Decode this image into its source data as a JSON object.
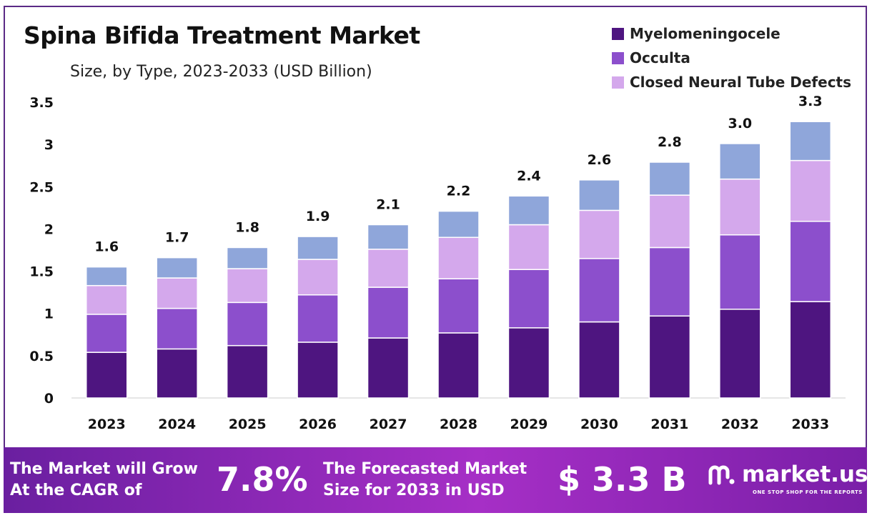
{
  "chart_data": {
    "type": "bar",
    "stacked": true,
    "title": "Spina Bifida Treatment Market",
    "subtitle": "Size, by Type, 2023-2033 (USD Billion)",
    "categories": [
      "2023",
      "2024",
      "2025",
      "2026",
      "2027",
      "2028",
      "2029",
      "2030",
      "2031",
      "2032",
      "2033"
    ],
    "series": [
      {
        "name": "Myelomeningocele",
        "color": "#4e1580",
        "values": [
          0.54,
          0.58,
          0.62,
          0.66,
          0.71,
          0.77,
          0.83,
          0.9,
          0.97,
          1.05,
          1.14
        ]
      },
      {
        "name": "Occulta",
        "color": "#8c4fcc",
        "values": [
          0.45,
          0.48,
          0.51,
          0.56,
          0.6,
          0.64,
          0.69,
          0.75,
          0.81,
          0.88,
          0.95
        ]
      },
      {
        "name": "Closed Neural Tube Defects",
        "color": "#d4a8ec",
        "values": [
          0.34,
          0.36,
          0.4,
          0.42,
          0.45,
          0.49,
          0.53,
          0.57,
          0.62,
          0.66,
          0.72
        ]
      },
      {
        "color": "#8fa6da",
        "values": [
          0.22,
          0.24,
          0.25,
          0.27,
          0.29,
          0.31,
          0.34,
          0.36,
          0.39,
          0.42,
          0.46
        ]
      }
    ],
    "totals_labels": [
      "1.6",
      "1.7",
      "1.8",
      "1.9",
      "2.1",
      "2.2",
      "2.4",
      "2.6",
      "2.8",
      "3.0",
      "3.3"
    ],
    "y_ticks": [
      "0",
      "0.5",
      "1",
      "1.5",
      "2",
      "2.5",
      "3",
      "3.5"
    ],
    "ylim": [
      0,
      3.5
    ],
    "grid": false,
    "legend_position": "top-right"
  },
  "banner": {
    "cagr_text_line1": "The Market will Grow",
    "cagr_text_line2": "At the CAGR of",
    "cagr_value": "7.8%",
    "forecast_text_line1": "The Forecasted Market",
    "forecast_text_line2": "Size for 2033 in USD",
    "forecast_value": "$ 3.3 B",
    "brand_name": "market.us",
    "brand_tagline": "ONE STOP SHOP FOR THE REPORTS"
  }
}
